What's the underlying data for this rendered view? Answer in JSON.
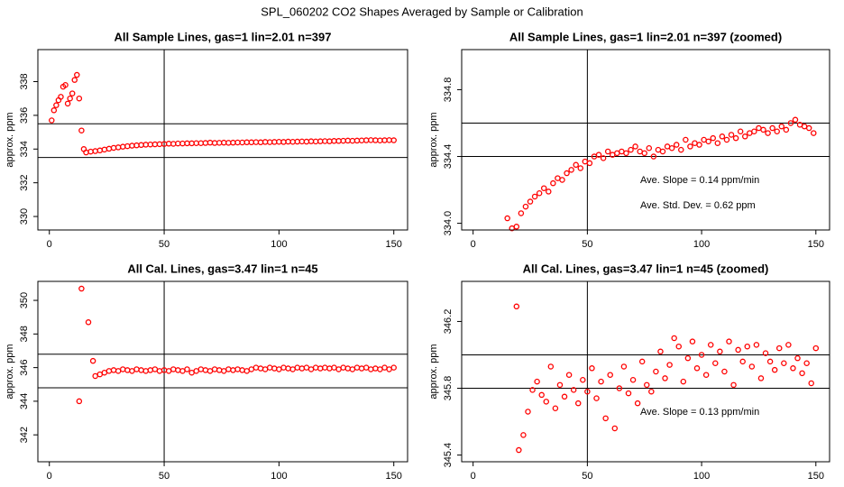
{
  "title": "SPL_060202  CO2 Shapes Averaged by Sample or Calibration",
  "chart_data": [
    {
      "type": "scatter",
      "title": "All Sample Lines, gas=1 lin=2.01 n=397",
      "y_label": "approx. ppm",
      "color": "#ff0000",
      "xlim": [
        -5,
        156
      ],
      "ylim": [
        329.2,
        339.9
      ],
      "xticks": [
        0,
        50,
        100,
        150
      ],
      "yticks": [
        330,
        332,
        334,
        336,
        338
      ],
      "hlines": [
        333.5,
        335.5
      ],
      "vline": 50,
      "x": [
        1,
        2,
        3,
        4,
        5,
        6,
        7,
        8,
        9,
        10,
        11,
        12,
        13,
        14,
        15,
        16,
        18,
        20,
        22,
        24,
        26,
        28,
        30,
        32,
        34,
        36,
        38,
        40,
        42,
        44,
        46,
        48,
        50,
        52,
        54,
        56,
        58,
        60,
        62,
        64,
        66,
        68,
        70,
        72,
        74,
        76,
        78,
        80,
        82,
        84,
        86,
        88,
        90,
        92,
        94,
        96,
        98,
        100,
        102,
        104,
        106,
        108,
        110,
        112,
        114,
        116,
        118,
        120,
        122,
        124,
        126,
        128,
        130,
        132,
        134,
        136,
        138,
        140,
        142,
        144,
        146,
        148,
        150
      ],
      "values": [
        335.7,
        336.3,
        336.6,
        336.9,
        337.1,
        337.7,
        337.8,
        336.7,
        337.0,
        337.3,
        338.1,
        338.4,
        337.0,
        335.1,
        334.0,
        333.8,
        333.85,
        333.88,
        333.92,
        333.97,
        334.02,
        334.07,
        334.1,
        334.14,
        334.17,
        334.2,
        334.22,
        334.24,
        334.26,
        334.27,
        334.28,
        334.29,
        334.3,
        334.32,
        334.31,
        334.33,
        334.33,
        334.34,
        334.34,
        334.35,
        334.35,
        334.36,
        334.38,
        334.36,
        334.37,
        334.38,
        334.37,
        334.38,
        334.39,
        334.39,
        334.4,
        334.4,
        334.41,
        334.4,
        334.42,
        334.41,
        334.42,
        334.43,
        334.42,
        334.44,
        334.43,
        334.44,
        334.45,
        334.44,
        334.46,
        334.45,
        334.46,
        334.47,
        334.46,
        334.48,
        334.48,
        334.49,
        334.5,
        334.49,
        334.5,
        334.51,
        334.52,
        334.53,
        334.52,
        334.51,
        334.52,
        334.53,
        334.52
      ]
    },
    {
      "type": "scatter",
      "title": "All Sample Lines, gas=1 lin=2.01 n=397 (zoomed)",
      "y_label": "approx. ppm",
      "color": "#ff0000",
      "xlim": [
        -5,
        156
      ],
      "ylim": [
        333.96,
        335.04
      ],
      "xticks": [
        0,
        50,
        100,
        150
      ],
      "yticks": [
        {
          "value": 334,
          "label": "334.0"
        },
        334.4,
        334.8
      ],
      "hlines": [
        334.4,
        334.6
      ],
      "vline": 50,
      "annotations": [
        "Ave. Slope =  0.14  ppm/min",
        "Ave. Std. Dev. =  0.62  ppm"
      ],
      "x": [
        15,
        17,
        19,
        21,
        23,
        25,
        27,
        29,
        31,
        33,
        35,
        37,
        39,
        41,
        43,
        45,
        47,
        49,
        51,
        53,
        55,
        57,
        59,
        61,
        63,
        65,
        67,
        69,
        71,
        73,
        75,
        77,
        79,
        81,
        83,
        85,
        87,
        89,
        91,
        93,
        95,
        97,
        99,
        101,
        103,
        105,
        107,
        109,
        111,
        113,
        115,
        117,
        119,
        121,
        123,
        125,
        127,
        129,
        131,
        133,
        135,
        137,
        139,
        141,
        143,
        145,
        147,
        149
      ],
      "values": [
        334.03,
        333.97,
        333.98,
        334.06,
        334.1,
        334.13,
        334.16,
        334.18,
        334.21,
        334.19,
        334.24,
        334.27,
        334.26,
        334.3,
        334.32,
        334.35,
        334.33,
        334.37,
        334.36,
        334.4,
        334.41,
        334.39,
        334.43,
        334.41,
        334.42,
        334.43,
        334.42,
        334.44,
        334.46,
        334.43,
        334.42,
        334.45,
        334.4,
        334.44,
        334.43,
        334.46,
        334.45,
        334.47,
        334.44,
        334.5,
        334.46,
        334.48,
        334.47,
        334.5,
        334.49,
        334.51,
        334.48,
        334.52,
        334.5,
        334.53,
        334.51,
        334.55,
        334.52,
        334.54,
        334.55,
        334.57,
        334.56,
        334.54,
        334.57,
        334.55,
        334.58,
        334.56,
        334.6,
        334.62,
        334.59,
        334.58,
        334.57,
        334.54
      ]
    },
    {
      "type": "scatter",
      "title": "All Cal. Lines, gas=3.47 lin=1 n=45",
      "y_label": "approx. ppm",
      "color": "#ff0000",
      "xlim": [
        -5,
        156
      ],
      "ylim": [
        340.4,
        351.13
      ],
      "xticks": [
        0,
        50,
        100,
        150
      ],
      "yticks": [
        342,
        344,
        346,
        348,
        350
      ],
      "hlines": [
        344.8,
        346.8
      ],
      "vline": 50,
      "x": [
        13,
        14,
        17,
        19,
        20,
        22,
        24,
        26,
        28,
        30,
        32,
        34,
        36,
        38,
        40,
        42,
        44,
        46,
        48,
        50,
        52,
        54,
        56,
        58,
        60,
        62,
        64,
        66,
        68,
        70,
        72,
        74,
        76,
        78,
        80,
        82,
        84,
        86,
        88,
        90,
        92,
        94,
        96,
        98,
        100,
        102,
        104,
        106,
        108,
        110,
        112,
        114,
        116,
        118,
        120,
        122,
        124,
        126,
        128,
        130,
        132,
        134,
        136,
        138,
        140,
        142,
        144,
        146,
        148,
        150
      ],
      "values": [
        344.0,
        350.7,
        348.7,
        346.4,
        345.5,
        345.6,
        345.7,
        345.8,
        345.85,
        345.8,
        345.9,
        345.85,
        345.8,
        345.9,
        345.85,
        345.8,
        345.85,
        345.9,
        345.8,
        345.85,
        345.8,
        345.9,
        345.85,
        345.8,
        345.9,
        345.7,
        345.8,
        345.9,
        345.85,
        345.8,
        345.9,
        345.85,
        345.8,
        345.9,
        345.85,
        345.9,
        345.85,
        345.8,
        345.9,
        346.0,
        345.95,
        345.9,
        346.0,
        345.95,
        345.9,
        346.0,
        345.95,
        345.9,
        346.0,
        345.95,
        346.0,
        345.9,
        346.0,
        345.95,
        346.0,
        345.95,
        346.0,
        345.9,
        346.0,
        345.95,
        345.9,
        346.0,
        345.95,
        346.0,
        345.9,
        345.95,
        345.9,
        346.0,
        345.9,
        346.0
      ]
    },
    {
      "type": "scatter",
      "title": "All Cal. Lines, gas=3.47 lin=1 n=45 (zoomed)",
      "y_label": "approx. ppm",
      "color": "#ff0000",
      "xlim": [
        -5,
        156
      ],
      "ylim": [
        345.36,
        346.44
      ],
      "xticks": [
        0,
        50,
        100,
        150
      ],
      "yticks": [
        345.4,
        345.8,
        346.2
      ],
      "hlines": [
        345.8,
        346.0
      ],
      "vline": 50,
      "annotations": [
        "Ave. Slope =  0.13  ppm/min"
      ],
      "x": [
        19,
        20,
        22,
        24,
        26,
        28,
        30,
        32,
        34,
        36,
        38,
        40,
        42,
        44,
        46,
        48,
        50,
        52,
        54,
        56,
        58,
        60,
        62,
        64,
        66,
        68,
        70,
        72,
        74,
        76,
        78,
        80,
        82,
        84,
        86,
        88,
        90,
        92,
        94,
        96,
        98,
        100,
        102,
        104,
        106,
        108,
        110,
        112,
        114,
        116,
        118,
        120,
        122,
        124,
        126,
        128,
        130,
        132,
        134,
        136,
        138,
        140,
        142,
        144,
        146,
        148,
        150
      ],
      "values": [
        346.29,
        345.43,
        345.52,
        345.66,
        345.79,
        345.84,
        345.76,
        345.72,
        345.93,
        345.68,
        345.82,
        345.75,
        345.88,
        345.79,
        345.71,
        345.85,
        345.78,
        345.92,
        345.74,
        345.84,
        345.62,
        345.88,
        345.56,
        345.8,
        345.93,
        345.77,
        345.85,
        345.71,
        345.96,
        345.82,
        345.78,
        345.9,
        346.02,
        345.86,
        345.94,
        346.1,
        346.05,
        345.84,
        345.98,
        346.08,
        345.92,
        346.0,
        345.88,
        346.06,
        345.95,
        346.02,
        345.9,
        346.08,
        345.82,
        346.03,
        345.96,
        346.05,
        345.93,
        346.06,
        345.86,
        346.01,
        345.96,
        345.91,
        346.04,
        345.95,
        346.06,
        345.92,
        345.98,
        345.89,
        345.95,
        345.83,
        346.04
      ]
    }
  ]
}
